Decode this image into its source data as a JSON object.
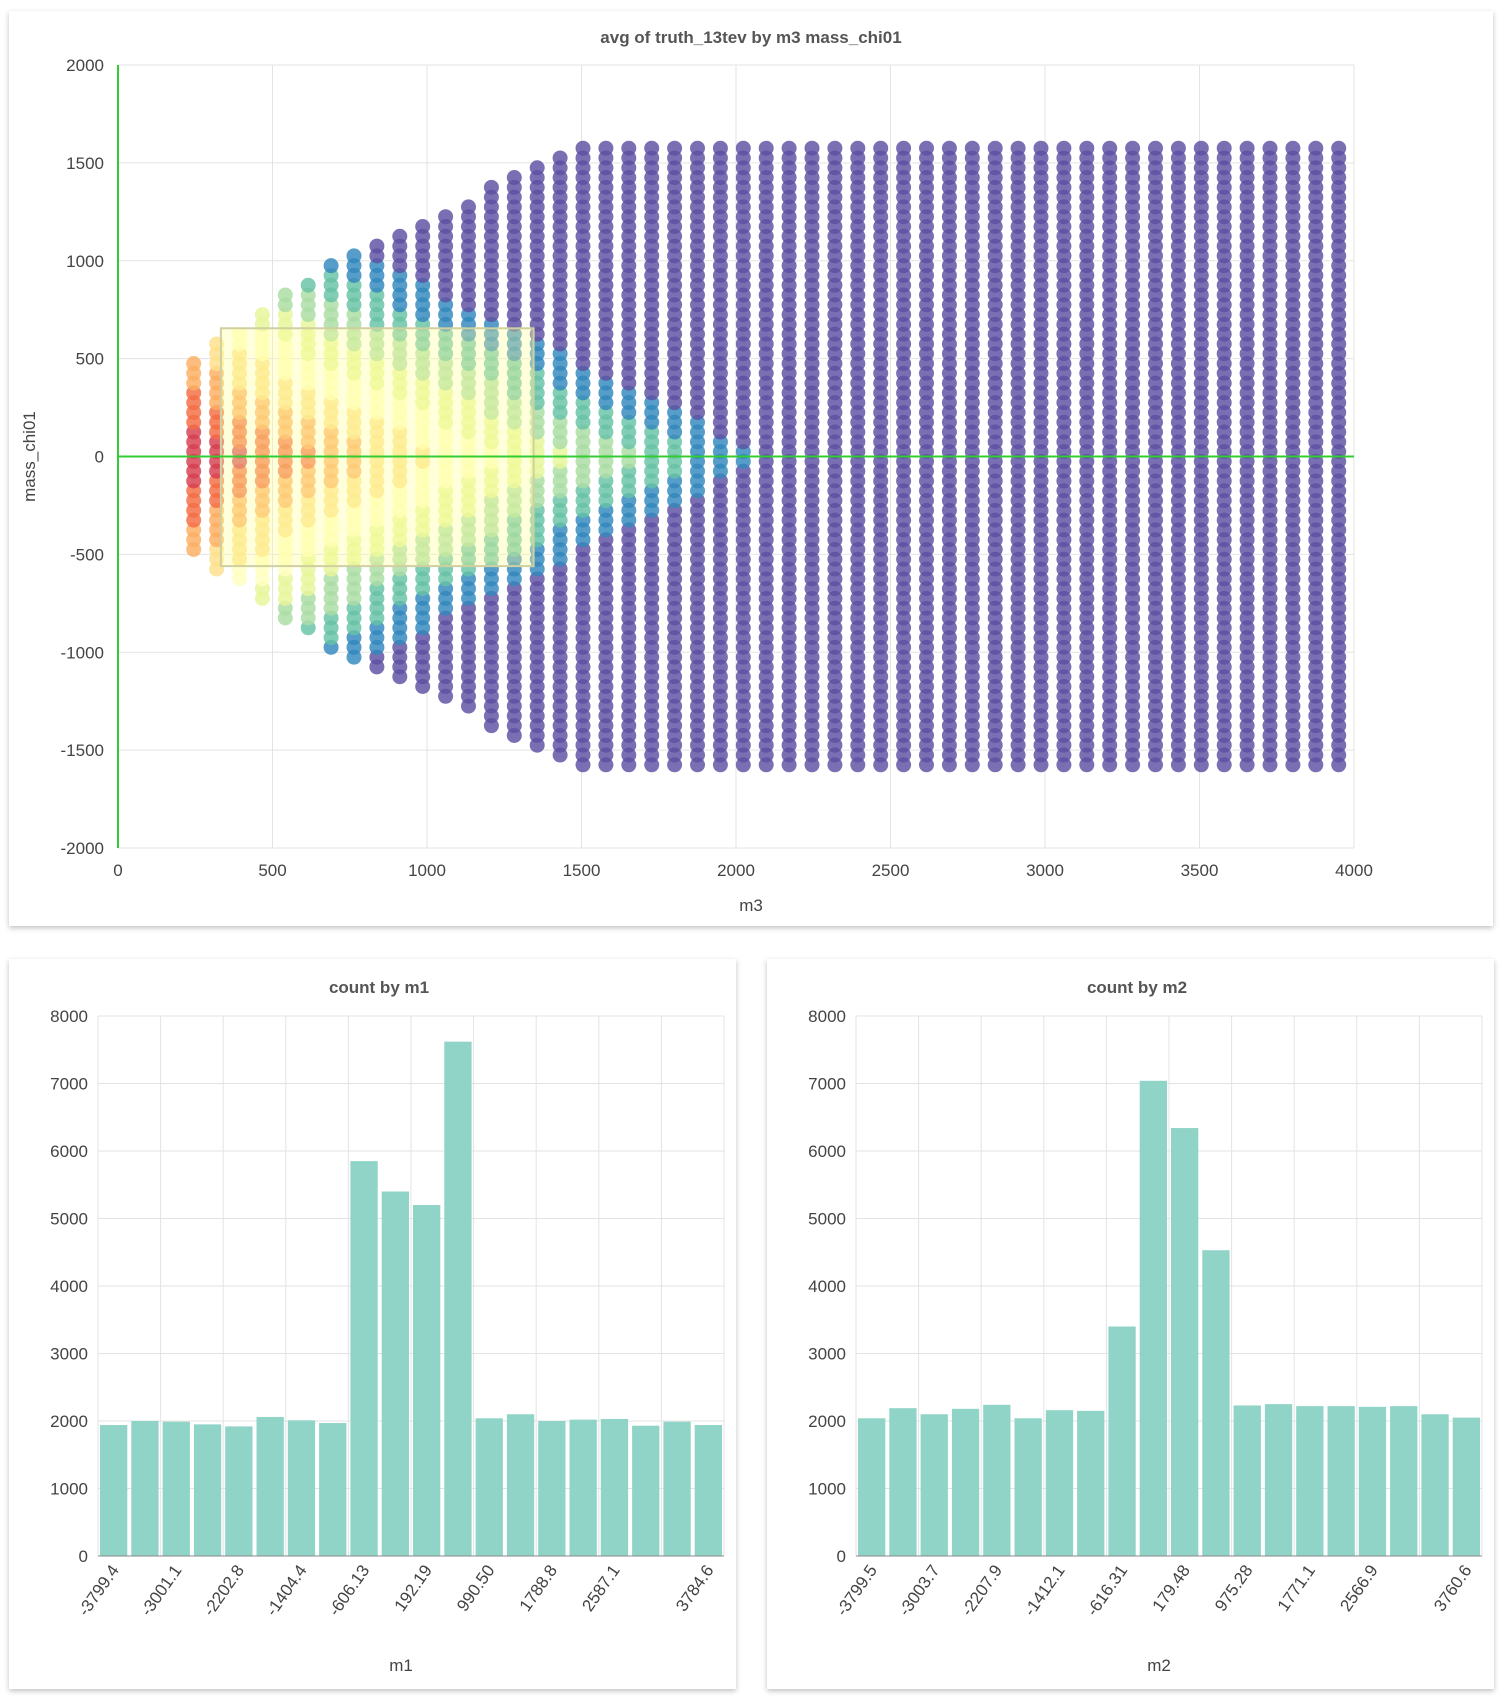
{
  "scatter": {
    "chart_data": {
      "type": "scatter",
      "title": "avg of truth_13tev by m3 mass_chi01",
      "xlabel": "m3",
      "ylabel": "mass_chi01",
      "xlim": [
        0,
        4000
      ],
      "ylim": [
        -2000,
        2000
      ],
      "xticks": [
        "0",
        "500",
        "1000",
        "1500",
        "2000",
        "2500",
        "3000",
        "3500",
        "4000"
      ],
      "yticks": [
        "2000",
        "1500",
        "1000",
        "500",
        "0",
        "-500",
        "-1000",
        "-1500",
        "-2000"
      ],
      "grid": true,
      "zero_lines_color": "#33cc33",
      "color_scale": [
        "#d53e4f",
        "#f46d43",
        "#fdae61",
        "#fee08b",
        "#ffffbf",
        "#e6f598",
        "#abdda4",
        "#66c2a5",
        "#3288bd",
        "#5e4fa2"
      ],
      "selection_box": {
        "x": [
          333,
          1345
        ],
        "y": [
          -560,
          655
        ]
      }
    }
  },
  "m1": {
    "chart_data": {
      "type": "bar",
      "title": "count by m1",
      "xlabel": "m1",
      "ylabel": "",
      "ylim": [
        0,
        8000
      ],
      "yticks": [
        "8000",
        "7000",
        "6000",
        "5000",
        "4000",
        "3000",
        "2000",
        "1000",
        "0"
      ],
      "xticks": [
        "-3799.4",
        "-3001.1",
        "-2202.8",
        "-1404.4",
        "-606.13",
        "192.19",
        "990.50",
        "1788.8",
        "2587.1",
        "3784.6"
      ],
      "xtick_bar_index": [
        0,
        2,
        4,
        6,
        8,
        10,
        12,
        14,
        16,
        19
      ],
      "values": [
        1940,
        2000,
        1990,
        1950,
        1920,
        2060,
        2010,
        1970,
        5850,
        5400,
        5200,
        7620,
        2040,
        2100,
        2000,
        2020,
        2030,
        1930,
        1990,
        1940
      ],
      "color": "#8fd4c6"
    }
  },
  "m2": {
    "chart_data": {
      "type": "bar",
      "title": "count by m2",
      "xlabel": "m2",
      "ylabel": "",
      "ylim": [
        0,
        8000
      ],
      "yticks": [
        "8000",
        "7000",
        "6000",
        "5000",
        "4000",
        "3000",
        "2000",
        "1000",
        "0"
      ],
      "xticks": [
        "-3799.5",
        "-3003.7",
        "-2207.9",
        "-1412.1",
        "-616.31",
        "179.48",
        "975.28",
        "1771.1",
        "2566.9",
        "3760.6"
      ],
      "xtick_bar_index": [
        0,
        2,
        4,
        6,
        8,
        10,
        12,
        14,
        16,
        19
      ],
      "values": [
        2040,
        2190,
        2100,
        2180,
        2240,
        2040,
        2160,
        2150,
        3400,
        7040,
        6340,
        4530,
        2230,
        2250,
        2220,
        2220,
        2210,
        2220,
        2100,
        2050
      ],
      "color": "#8fd4c6"
    }
  }
}
